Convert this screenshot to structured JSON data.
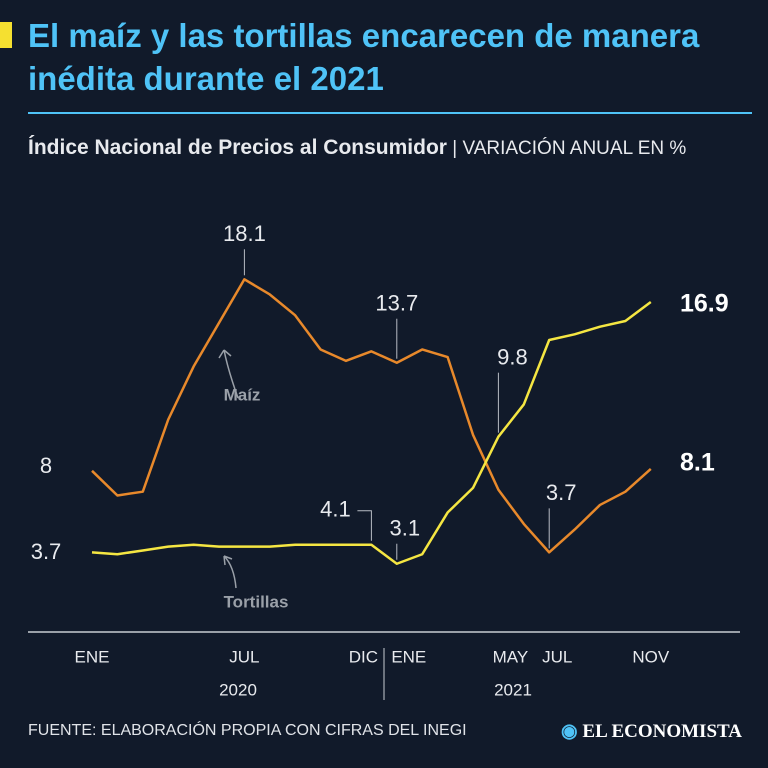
{
  "chart_data": {
    "type": "line",
    "title": "El maíz y las tortillas encarecen de manera inédita durante el 2021",
    "subtitle_bold": "Índice Nacional de Precios al Consumidor",
    "subtitle": "| VARIACIÓN ANUAL EN %",
    "source": "FUENTE: ELABORACIÓN PROPIA CON CIFRAS DEL INEGI",
    "brand": "EL ECONOMISTA",
    "categories": [
      "ENE",
      null,
      null,
      null,
      null,
      null,
      "JUL",
      null,
      null,
      null,
      null,
      "DIC",
      "ENE",
      null,
      null,
      null,
      "MAY",
      null,
      "JUL",
      null,
      null,
      null,
      "NOV"
    ],
    "years": [
      "2020",
      "2021"
    ],
    "series": [
      {
        "name": "Maíz",
        "color": "#e8892b",
        "values": [
          8.0,
          6.7,
          6.9,
          10.7,
          13.5,
          15.8,
          18.1,
          17.3,
          16.2,
          14.4,
          13.8,
          14.3,
          13.7,
          14.4,
          14.0,
          9.9,
          7.0,
          5.2,
          3.7,
          4.9,
          6.2,
          6.9,
          8.1
        ]
      },
      {
        "name": "Tortillas",
        "color": "#f5e642",
        "values": [
          3.7,
          3.6,
          3.8,
          4.0,
          4.1,
          4.0,
          4.0,
          4.0,
          4.1,
          4.1,
          4.1,
          4.1,
          3.1,
          3.6,
          5.8,
          7.1,
          9.8,
          11.5,
          14.9,
          15.2,
          15.6,
          15.9,
          16.9
        ]
      }
    ],
    "ylim": [
      -0.5,
      20.7
    ]
  }
}
